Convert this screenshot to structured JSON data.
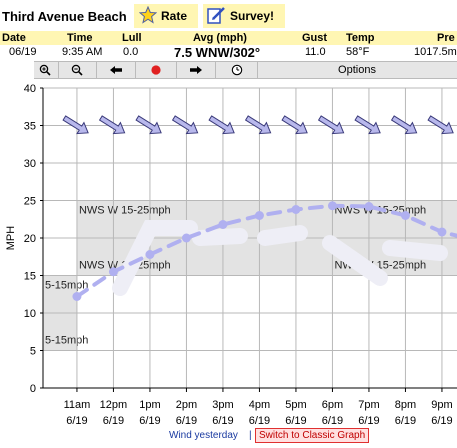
{
  "header": {
    "title": "Third Avenue Beach",
    "rate_label": "Rate",
    "survey_label": "Survey!"
  },
  "columns": {
    "date": "Date",
    "time": "Time",
    "lull": "Lull",
    "avg": "Avg (mph)",
    "gust": "Gust",
    "temp": "Temp",
    "pressure": "Pre"
  },
  "current": {
    "date": "06/19",
    "time": "9:35 AM",
    "lull": "0.0",
    "avg": "7.5 WNW/302°",
    "gust": "11.0",
    "temp": "58°F",
    "pressure": "1017.5m"
  },
  "toolbar": {
    "options_label": "Options",
    "icons": [
      "zoom-in-icon",
      "zoom-out-icon",
      "back-arrow-icon",
      "record-icon",
      "forward-arrow-icon",
      "clock-icon"
    ]
  },
  "chart_data": {
    "type": "line",
    "ylabel": "MPH",
    "ylim": [
      0,
      40
    ],
    "yticks": [
      0,
      5,
      10,
      15,
      20,
      25,
      30,
      35,
      40
    ],
    "xtick_labels": [
      {
        "time": "11am",
        "date": "6/19"
      },
      {
        "time": "12pm",
        "date": "6/19"
      },
      {
        "time": "1pm",
        "date": "6/19"
      },
      {
        "time": "2pm",
        "date": "6/19"
      },
      {
        "time": "3pm",
        "date": "6/19"
      },
      {
        "time": "4pm",
        "date": "6/19"
      },
      {
        "time": "5pm",
        "date": "6/19"
      },
      {
        "time": "6pm",
        "date": "6/19"
      },
      {
        "time": "7pm",
        "date": "6/19"
      },
      {
        "time": "8pm",
        "date": "6/19"
      },
      {
        "time": "9pm",
        "date": "6/19"
      }
    ],
    "series": [
      {
        "hours": [
          11,
          12,
          13,
          14,
          15,
          16,
          17,
          18,
          19,
          20,
          21,
          21.5
        ],
        "values": [
          12.2,
          15.5,
          17.8,
          20.0,
          21.8,
          23.0,
          23.8,
          24.3,
          24.2,
          23.0,
          20.8,
          20.2
        ],
        "color": "#b0b0f0"
      }
    ],
    "forecast_bands": [
      {
        "label": "5-15mph",
        "start": 10,
        "end": 11,
        "low": 5,
        "high": 15
      },
      {
        "label": "NWS W 15-25mph",
        "start": 11,
        "end": 18,
        "low": 15,
        "high": 25
      },
      {
        "label": "NWS W 15-25mph",
        "start": 18,
        "end": 22,
        "low": 15,
        "high": 25
      }
    ],
    "direction_arrows": {
      "hours": [
        11,
        12,
        13,
        14,
        15,
        16,
        17,
        18,
        19,
        20,
        21
      ],
      "direction": "WNW",
      "level": 35
    },
    "grid": true
  },
  "footer": {
    "wind_yesterday": "Wind yesterday",
    "separator": "|",
    "classic_graph": "Switch to Classic Graph"
  }
}
